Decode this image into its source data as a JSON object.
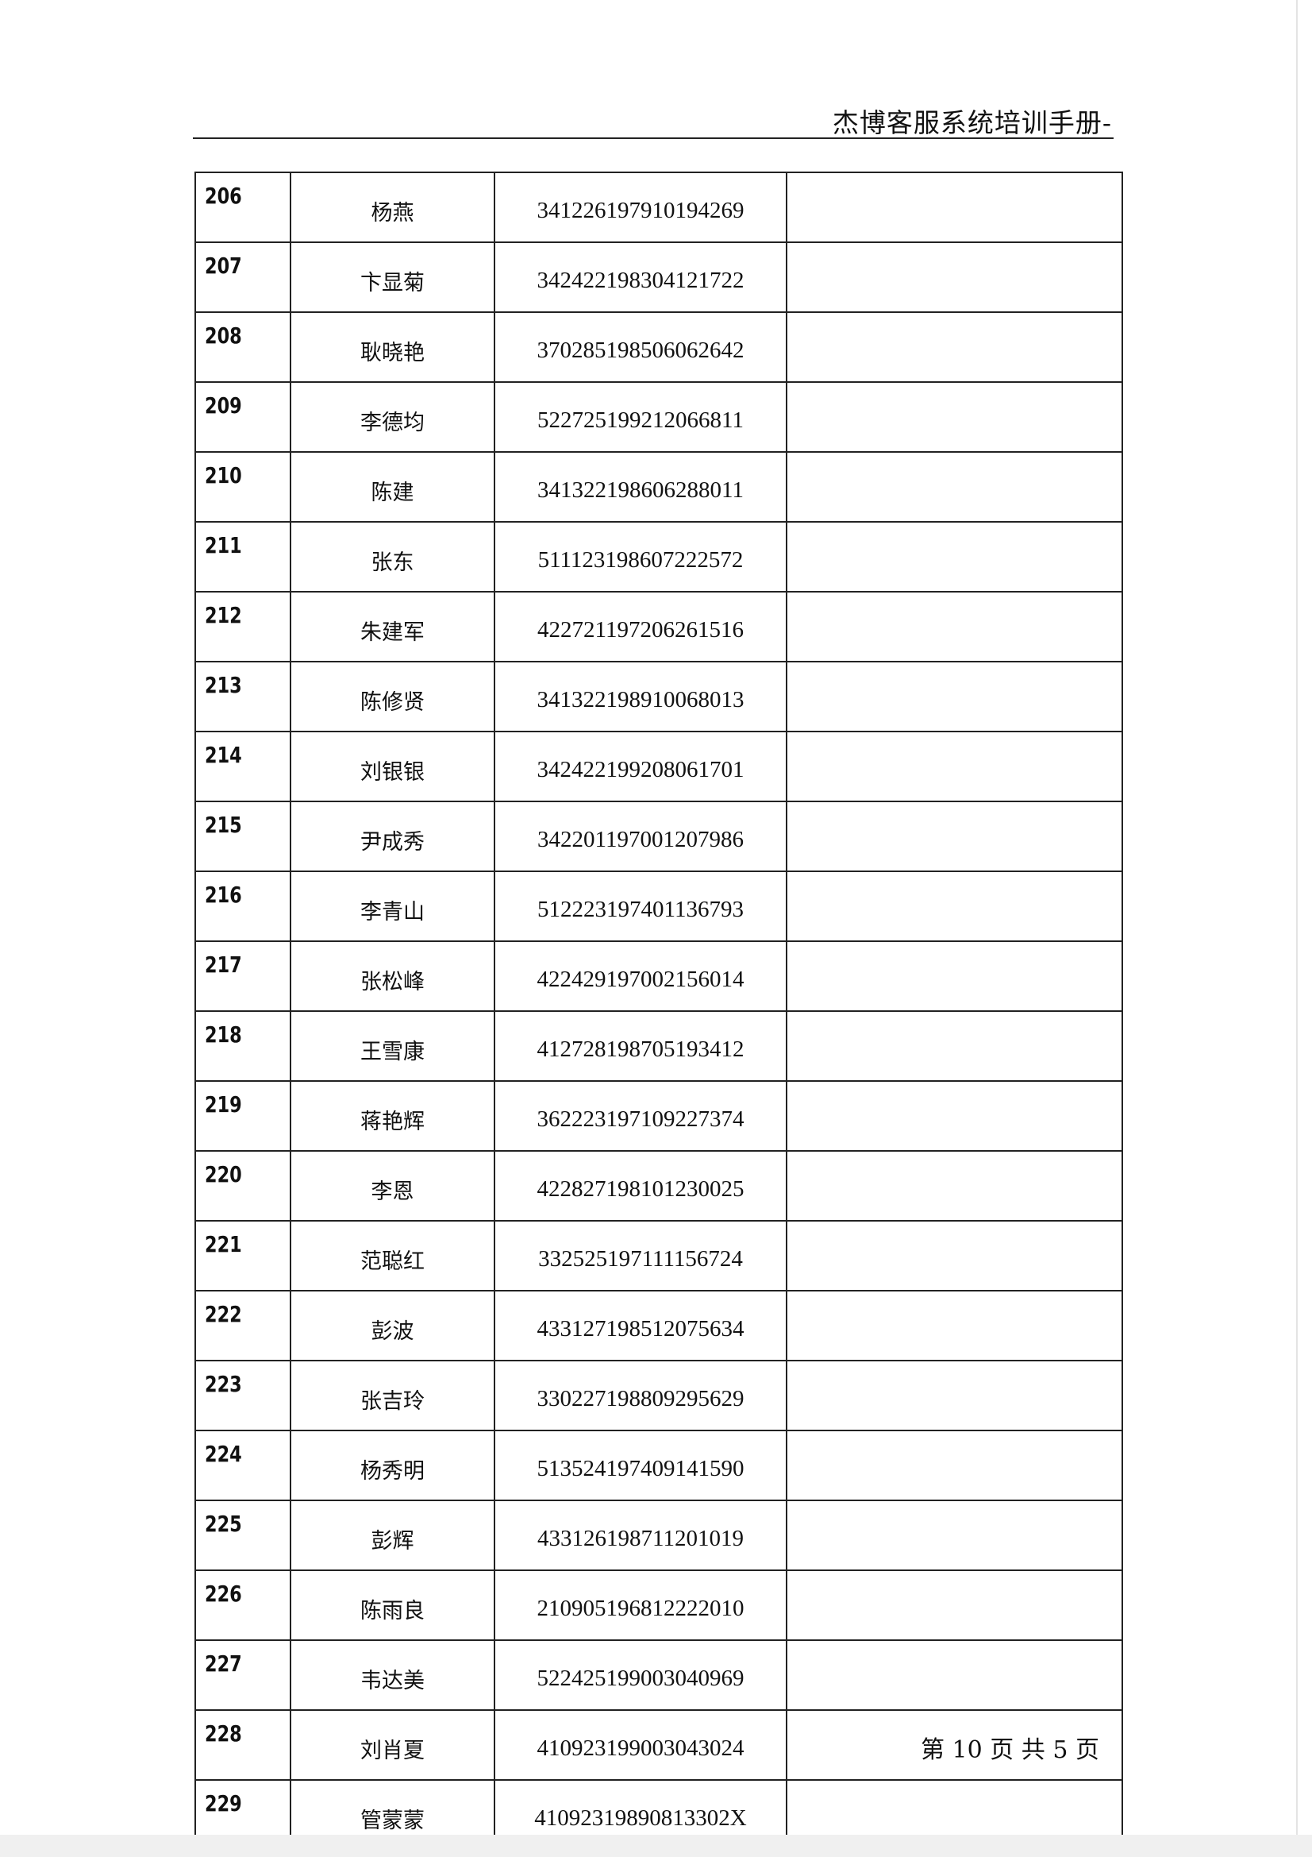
{
  "header": {
    "title": "杰博客服系统培训手册-"
  },
  "table": {
    "rows": [
      {
        "no": "206",
        "name": "杨燕",
        "id": "341226197910194269",
        "note": ""
      },
      {
        "no": "207",
        "name": "卞显菊",
        "id": "342422198304121722",
        "note": ""
      },
      {
        "no": "208",
        "name": "耿晓艳",
        "id": "370285198506062642",
        "note": ""
      },
      {
        "no": "209",
        "name": "李德均",
        "id": "522725199212066811",
        "note": ""
      },
      {
        "no": "210",
        "name": "陈建",
        "id": "341322198606288011",
        "note": ""
      },
      {
        "no": "211",
        "name": "张东",
        "id": "511123198607222572",
        "note": ""
      },
      {
        "no": "212",
        "name": "朱建军",
        "id": "422721197206261516",
        "note": ""
      },
      {
        "no": "213",
        "name": "陈修贤",
        "id": "341322198910068013",
        "note": ""
      },
      {
        "no": "214",
        "name": "刘银银",
        "id": "342422199208061701",
        "note": ""
      },
      {
        "no": "215",
        "name": "尹成秀",
        "id": "342201197001207986",
        "note": ""
      },
      {
        "no": "216",
        "name": "李青山",
        "id": "512223197401136793",
        "note": ""
      },
      {
        "no": "217",
        "name": "张松峰",
        "id": "422429197002156014",
        "note": ""
      },
      {
        "no": "218",
        "name": "王雪康",
        "id": "412728198705193412",
        "note": ""
      },
      {
        "no": "219",
        "name": "蒋艳辉",
        "id": "362223197109227374",
        "note": ""
      },
      {
        "no": "220",
        "name": "李恩",
        "id": "422827198101230025",
        "note": ""
      },
      {
        "no": "221",
        "name": "范聪红",
        "id": "332525197111156724",
        "note": ""
      },
      {
        "no": "222",
        "name": "彭波",
        "id": "433127198512075634",
        "note": ""
      },
      {
        "no": "223",
        "name": "张吉玲",
        "id": "330227198809295629",
        "note": ""
      },
      {
        "no": "224",
        "name": "杨秀明",
        "id": "513524197409141590",
        "note": ""
      },
      {
        "no": "225",
        "name": "彭辉",
        "id": "433126198711201019",
        "note": ""
      },
      {
        "no": "226",
        "name": "陈雨良",
        "id": "210905196812222010",
        "note": ""
      },
      {
        "no": "227",
        "name": "韦达美",
        "id": "522425199003040969",
        "note": ""
      },
      {
        "no": "228",
        "name": "刘肖夏",
        "id": "410923199003043024",
        "note": ""
      },
      {
        "no": "229",
        "name": "管蒙蒙",
        "id": "41092319890813302X",
        "note": ""
      }
    ]
  },
  "footer": {
    "page_label": "第 10 页  共 5 页"
  }
}
